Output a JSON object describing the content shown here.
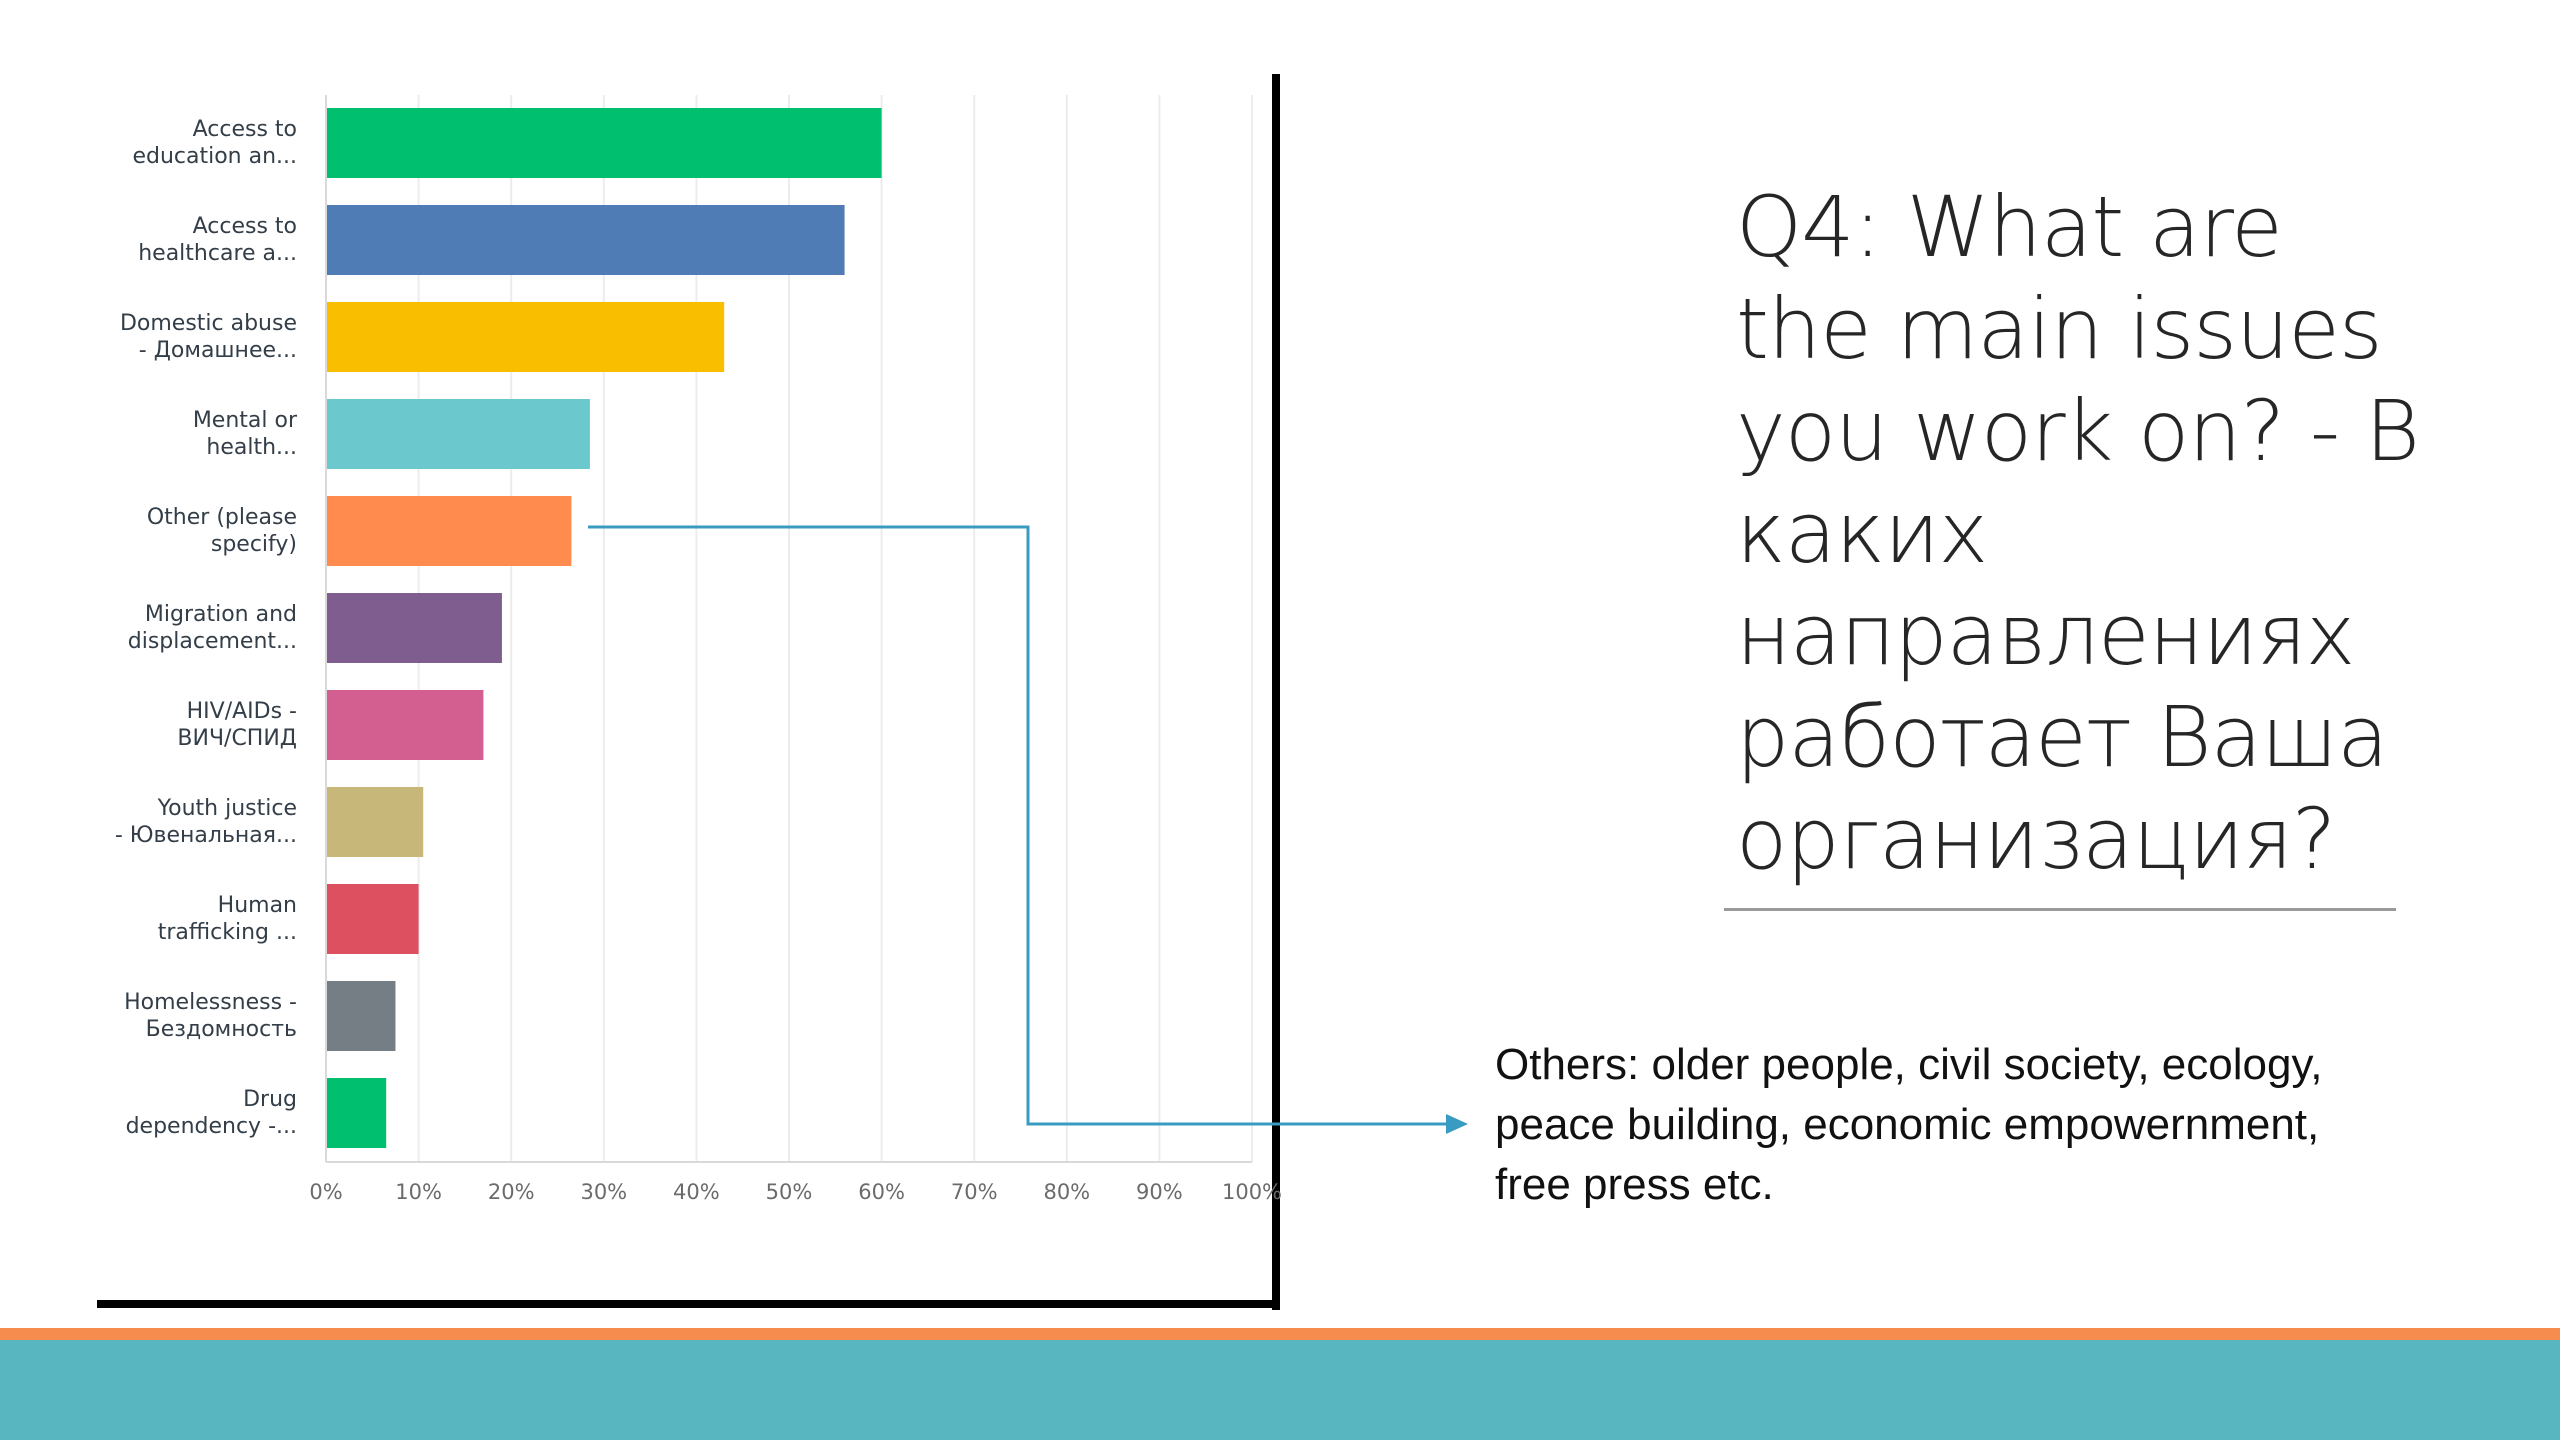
{
  "slide": {
    "title": "Q4: What are the main issues you work on? - В каких направлениях работает Ваша организация?",
    "others_note": "Others: older people, civil society, ecology, peace building, economic empowernment, free press etc."
  },
  "colors": {
    "footer_band": "#58b6c0",
    "footer_stripe": "#f68c4e",
    "callout_line": "#3a9bc2"
  },
  "chart_data": {
    "type": "bar",
    "orientation": "horizontal",
    "categories": [
      [
        "Access to",
        "education an..."
      ],
      [
        "Access to",
        "healthcare a..."
      ],
      [
        "Domestic abuse",
        "- Домашнее..."
      ],
      [
        "Mental or",
        "health..."
      ],
      [
        "Other (please",
        "specify)"
      ],
      [
        "Migration and",
        "displacement..."
      ],
      [
        "HIV/AIDs -",
        "ВИЧ/СПИД"
      ],
      [
        "Youth justice",
        "- Ювенальная..."
      ],
      [
        "Human",
        "trafficking ..."
      ],
      [
        "Homelessness -",
        "Бездомность"
      ],
      [
        "Drug",
        "dependency -..."
      ]
    ],
    "values": [
      60,
      56,
      43,
      28.5,
      26.5,
      19,
      17,
      10.5,
      10,
      7.5,
      6.5
    ],
    "bar_colors": [
      "#00bf6f",
      "#507cb6",
      "#f9be00",
      "#6bc8cd",
      "#ff8b4f",
      "#7f5e8f",
      "#d25f90",
      "#c7b879",
      "#dd5060",
      "#757d85",
      "#00bf6f"
    ],
    "x_ticks": [
      "0%",
      "10%",
      "20%",
      "30%",
      "40%",
      "50%",
      "60%",
      "70%",
      "80%",
      "90%",
      "100%"
    ],
    "xlim": [
      0,
      100
    ],
    "grid": true,
    "legend": "none"
  }
}
